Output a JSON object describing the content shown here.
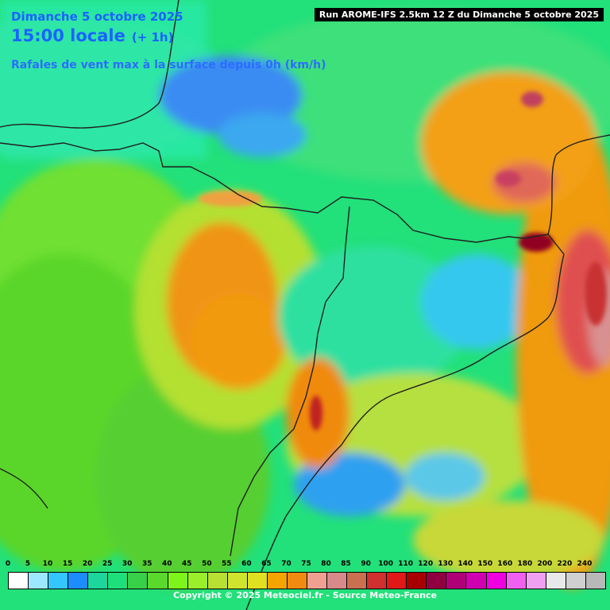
{
  "header": {
    "date": "Dimanche 5 octobre 2025",
    "time": "15:00 locale",
    "offset": "(+ 1h)",
    "variable": "Rafales de vent max à la surface depuis 0h (km/h)",
    "run": "Run AROME-IFS 2.5km 12 Z du Dimanche 5 octobre 2025"
  },
  "legend": {
    "values": [
      "0",
      "5",
      "10",
      "15",
      "20",
      "25",
      "30",
      "35",
      "40",
      "45",
      "50",
      "55",
      "60",
      "65",
      "70",
      "75",
      "80",
      "85",
      "90",
      "100",
      "110",
      "120",
      "130",
      "140",
      "150",
      "160",
      "180",
      "200",
      "220",
      "240"
    ],
    "colors": [
      "#ffffff",
      "#9de8ff",
      "#34c6ff",
      "#1c8cff",
      "#1cd69c",
      "#1ee07a",
      "#38d048",
      "#5ad82c",
      "#7ff41a",
      "#9aee2a",
      "#b8e032",
      "#cfe42c",
      "#e0e020",
      "#f4a400",
      "#f08a10",
      "#f0a090",
      "#d88a8a",
      "#c87050",
      "#d03030",
      "#e01818",
      "#a80000",
      "#900040",
      "#b00078",
      "#d000b0",
      "#f000e0",
      "#f060f0",
      "#f0a0f0",
      "#e8e8e8",
      "#d0d0d0",
      "#b8b8b8"
    ]
  },
  "footer": {
    "copyright": "Copyright © 2025 Meteociel.fr - Source Meteo-France"
  }
}
